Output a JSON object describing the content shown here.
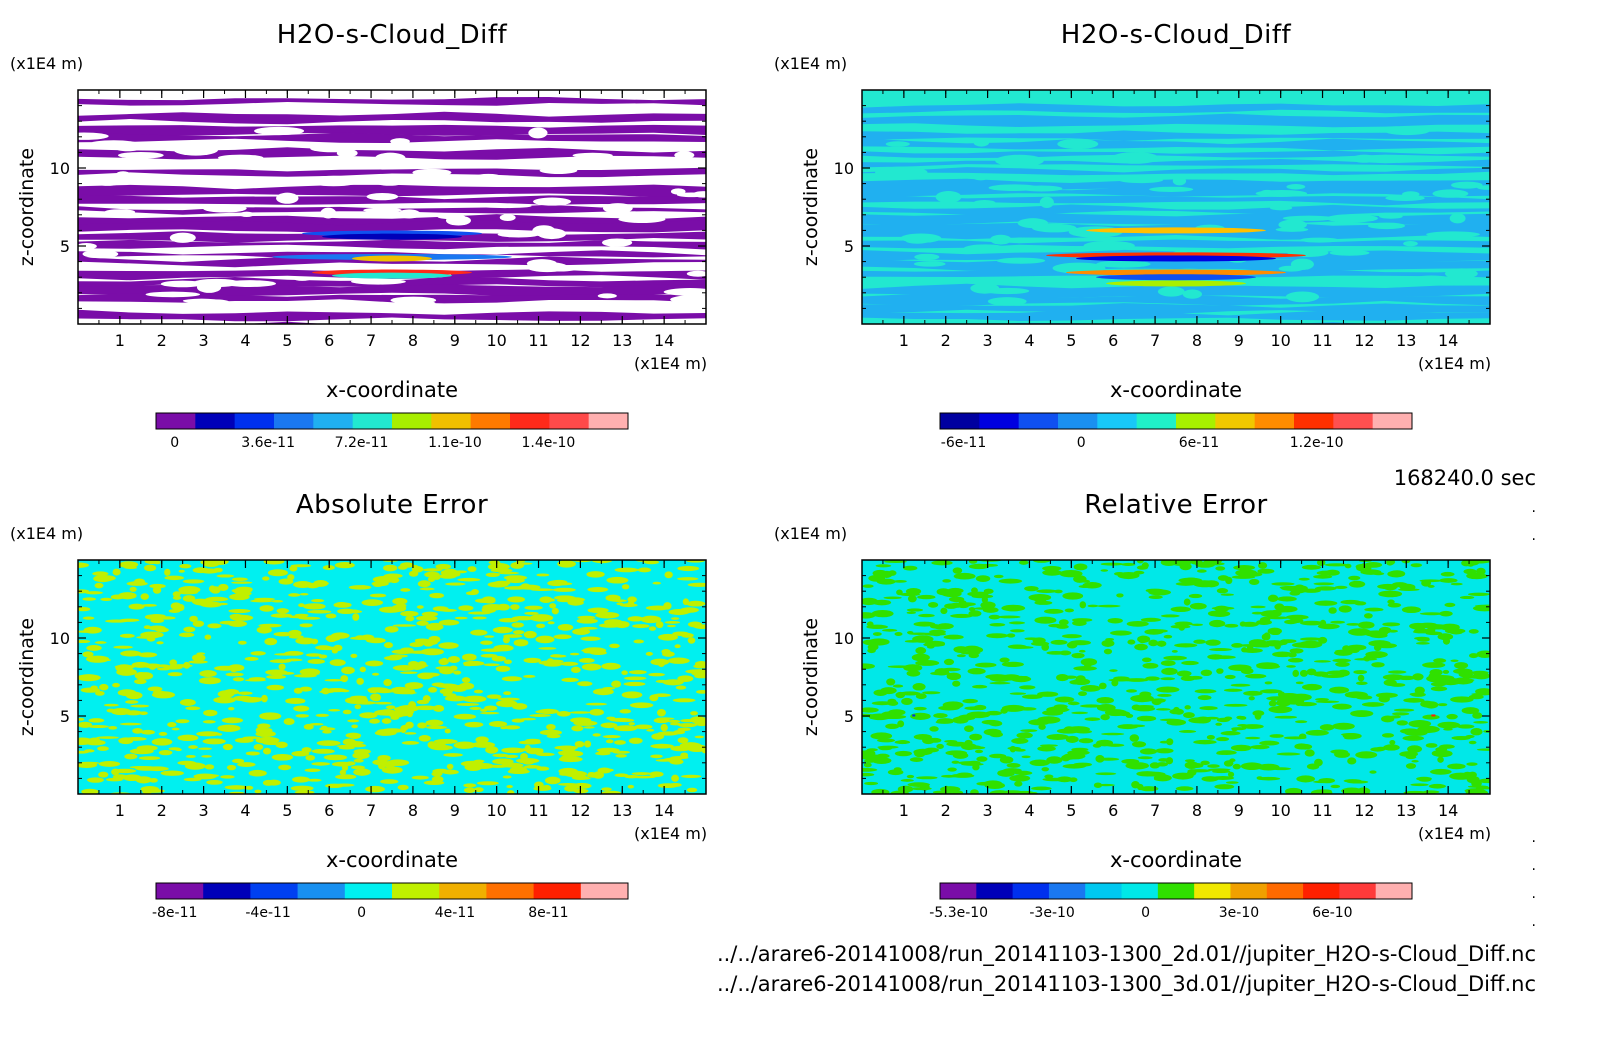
{
  "timestamp": "168240.0 sec",
  "footer": {
    "line1": "../../arare6-20141008/run_20141103-1300_2d.01//jupiter_H2O-s-Cloud_Diff.nc",
    "line2": "../../arare6-20141008/run_20141103-1300_3d.01//jupiter_H2O-s-Cloud_Diff.nc"
  },
  "chart_data": [
    {
      "type": "heatmap",
      "title": "H2O-s-Cloud_Diff",
      "xlabel": "x-coordinate",
      "ylabel": "z-coordinate",
      "x_unit": "(x1E4 m)",
      "y_unit": "(x1E4 m)",
      "x_ticks": [
        "1",
        "2",
        "3",
        "4",
        "5",
        "6",
        "7",
        "8",
        "9",
        "10",
        "11",
        "12",
        "13",
        "14"
      ],
      "y_ticks": [
        "5",
        "10"
      ],
      "xlim": [
        0,
        15
      ],
      "ylim": [
        0,
        15
      ],
      "colorbar": {
        "colors": [
          "#7a0da8",
          "#0000b8",
          "#0030ee",
          "#1a78f0",
          "#20b0f0",
          "#22e8d0",
          "#a8ee00",
          "#f0c000",
          "#ff7a00",
          "#ff2a1a",
          "#ff4a4a",
          "#ffb0b0"
        ],
        "tick_labels": [
          "0",
          "3.6e-11",
          "7.2e-11",
          "1.1e-10",
          "1.4e-10"
        ]
      },
      "pattern": "plume"
    },
    {
      "type": "heatmap",
      "title": "H2O-s-Cloud_Diff",
      "xlabel": "x-coordinate",
      "ylabel": "z-coordinate",
      "x_unit": "(x1E4 m)",
      "y_unit": "(x1E4 m)",
      "x_ticks": [
        "1",
        "2",
        "3",
        "4",
        "5",
        "6",
        "7",
        "8",
        "9",
        "10",
        "11",
        "12",
        "13",
        "14"
      ],
      "y_ticks": [
        "5",
        "10"
      ],
      "xlim": [
        0,
        15
      ],
      "ylim": [
        0,
        15
      ],
      "colorbar": {
        "colors": [
          "#0000a0",
          "#0000e0",
          "#1050f0",
          "#1a90f0",
          "#18c8f8",
          "#20f0c8",
          "#a8f000",
          "#f0c800",
          "#ff8c00",
          "#ff3000",
          "#ff5050",
          "#ffb0b0"
        ],
        "tick_labels": [
          "-6e-11",
          "0",
          "6e-11",
          "1.2e-10"
        ]
      },
      "pattern": "plume-cyan"
    },
    {
      "type": "heatmap",
      "title": "Absolute Error",
      "xlabel": "x-coordinate",
      "ylabel": "z-coordinate",
      "x_unit": "(x1E4 m)",
      "y_unit": "(x1E4 m)",
      "x_ticks": [
        "1",
        "2",
        "3",
        "4",
        "5",
        "6",
        "7",
        "8",
        "9",
        "10",
        "11",
        "12",
        "13",
        "14"
      ],
      "y_ticks": [
        "5",
        "10"
      ],
      "xlim": [
        0,
        15
      ],
      "ylim": [
        0,
        15
      ],
      "colorbar": {
        "colors": [
          "#7a0da8",
          "#0000b8",
          "#0040f0",
          "#1890f0",
          "#00f0f0",
          "#c0f000",
          "#f0b000",
          "#ff7000",
          "#ff2000",
          "#ffb0b0"
        ],
        "tick_labels": [
          "-8e-11",
          "-4e-11",
          "0",
          "4e-11",
          "8e-11"
        ]
      },
      "pattern": "noise-yellow"
    },
    {
      "type": "heatmap",
      "title": "Relative Error",
      "xlabel": "x-coordinate",
      "ylabel": "z-coordinate",
      "x_unit": "(x1E4 m)",
      "y_unit": "(x1E4 m)",
      "x_ticks": [
        "1",
        "2",
        "3",
        "4",
        "5",
        "6",
        "7",
        "8",
        "9",
        "10",
        "11",
        "12",
        "13",
        "14"
      ],
      "y_ticks": [
        "5",
        "10"
      ],
      "xlim": [
        0,
        15
      ],
      "ylim": [
        0,
        15
      ],
      "colorbar": {
        "colors": [
          "#7a0da8",
          "#0000b8",
          "#0030ee",
          "#1a78f0",
          "#00c8f0",
          "#00e8e8",
          "#30e000",
          "#f0e800",
          "#f0a000",
          "#ff6a00",
          "#ff2000",
          "#ff3a3a",
          "#ffb0b0"
        ],
        "tick_labels": [
          "-5.3e-10",
          "-3e-10",
          "0",
          "3e-10",
          "6e-10"
        ]
      },
      "pattern": "noise-green"
    }
  ]
}
